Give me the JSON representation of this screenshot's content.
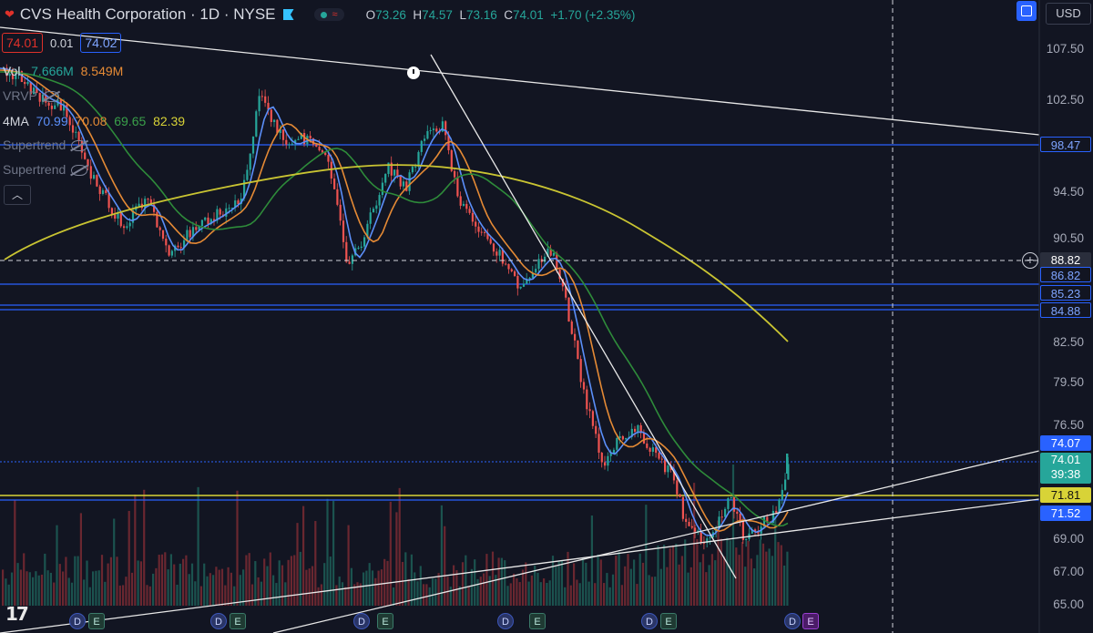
{
  "header": {
    "title": "CVS Health Corporation · 1D · NYSE",
    "ohlc": {
      "o_label": "O",
      "o": "73.26",
      "h_label": "H",
      "h": "74.57",
      "l_label": "L",
      "l": "73.16",
      "c_label": "C",
      "c": "74.01",
      "change": "+1.70 (+2.35%)"
    },
    "currency": "USD"
  },
  "quote": {
    "bid": "74.01",
    "spread": "0.01",
    "ask": "74.02"
  },
  "legend": {
    "vol_label": "Vol.",
    "vol_a": "7.666M",
    "vol_b": "8.549M",
    "vrvp_label": "VRVP",
    "ma_label": "4MA",
    "ma1": "70.99",
    "ma2": "70.08",
    "ma3": "69.65",
    "ma4": "82.39",
    "st1": "Supertrend",
    "st2": "Supertrend"
  },
  "colors": {
    "bg": "#121522",
    "up": "#26a69a",
    "down": "#ef5350",
    "ma1": "#5b8ff9",
    "ma2": "#e58a35",
    "ma3": "#2e8b3a",
    "ma4": "#c9c432",
    "hline": "#2962ff",
    "yellow": "#d8d337"
  },
  "axis": {
    "ticks": [
      "107.50",
      "102.50",
      "98.47",
      "94.50",
      "90.50",
      "88.82",
      "86.82",
      "85.23",
      "84.88",
      "82.50",
      "79.50",
      "76.50",
      "74.07",
      "74.01",
      "39:38",
      "71.81",
      "71.52",
      "69.00",
      "67.00",
      "65.00"
    ]
  },
  "price_tags": {
    "t9847": "98.47",
    "t8882": "88.82",
    "t8682": "86.82",
    "t8523": "85.23",
    "t8488": "84.88",
    "t7407": "74.07",
    "last": "74.01",
    "countdown": "39:38",
    "t7181": "71.81",
    "t7152": "71.52"
  },
  "events": [
    "D",
    "E",
    "D",
    "E",
    "D",
    "E",
    "D",
    "E",
    "D",
    "E",
    "D",
    "E",
    "D",
    "E"
  ],
  "chart_data": {
    "type": "candlestick",
    "levels": [
      98.47,
      86.82,
      85.23,
      84.88,
      74.07,
      71.81,
      71.52
    ],
    "last_price": 74.01,
    "ylim": [
      64.5,
      109.5
    ]
  }
}
